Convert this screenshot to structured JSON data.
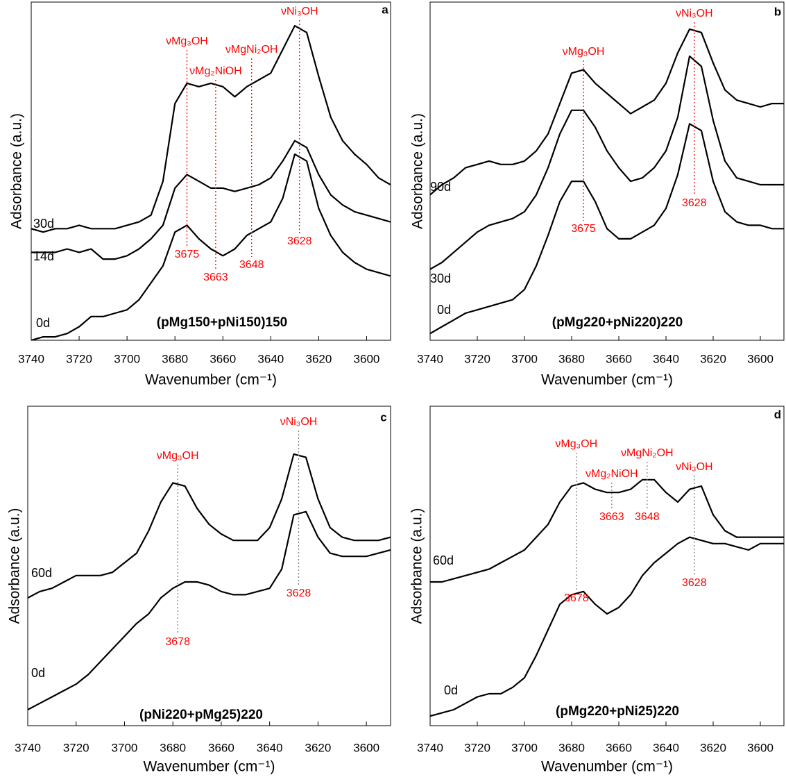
{
  "chart_data": [
    {
      "type": "line",
      "label": "a",
      "subtitle": "(pMg150+pNi150)150",
      "xlabel": "Wavenumber (cm⁻¹)",
      "ylabel": "Adsorbance (a.u.)",
      "x": [
        3740,
        3735,
        3730,
        3725,
        3720,
        3715,
        3710,
        3705,
        3700,
        3695,
        3690,
        3685,
        3680,
        3675,
        3670,
        3665,
        3660,
        3655,
        3650,
        3645,
        3640,
        3635,
        3630,
        3625,
        3620,
        3615,
        3610,
        3605,
        3600,
        3595,
        3590
      ],
      "xlim": [
        3740,
        3590
      ],
      "xticks": [
        3740,
        3720,
        3700,
        3680,
        3660,
        3640,
        3620,
        3600
      ],
      "ylim": [
        0,
        100
      ],
      "series": [
        {
          "name": "30d",
          "color": "#000000",
          "values": [
            33,
            32,
            33,
            33,
            34,
            33,
            33,
            33,
            34,
            35,
            37,
            47,
            70,
            76,
            75,
            76,
            75,
            72,
            75,
            77,
            79,
            86,
            93,
            91,
            78,
            66,
            59,
            55,
            52,
            48,
            46
          ]
        },
        {
          "name": "14d",
          "color": "#000000",
          "values": [
            26,
            26,
            26,
            27,
            26,
            27,
            24,
            24,
            25,
            27,
            30,
            34,
            45,
            49,
            47,
            45,
            45,
            44,
            45,
            46,
            48,
            53,
            59,
            57,
            49,
            43,
            40,
            38,
            37,
            36,
            35
          ]
        },
        {
          "name": "0d",
          "color": "#000000",
          "values": [
            0,
            1,
            1,
            2,
            4,
            7,
            7,
            8,
            9,
            12,
            17,
            22,
            32,
            34,
            30,
            27,
            25,
            27,
            31,
            33,
            35,
            42,
            55,
            53,
            39,
            31,
            26,
            23,
            21,
            20,
            19
          ]
        }
      ],
      "peaks": [
        {
          "name": "νMg₃OH",
          "x": 3675
        },
        {
          "name": "νMg₂NiOH",
          "x": 3663
        },
        {
          "name": "νMgNi₂OH",
          "x": 3648
        },
        {
          "name": "νNi₃OH",
          "x": 3628
        }
      ],
      "peak_color": "#ff0000",
      "peak_line_color": "#ff0000"
    },
    {
      "type": "line",
      "label": "b",
      "subtitle": "(pMg220+pNi220)220",
      "xlabel": "Wavenumber (cm⁻¹)",
      "ylabel": "Adsorbance (a.u.)",
      "x": [
        3740,
        3735,
        3730,
        3725,
        3720,
        3715,
        3710,
        3705,
        3700,
        3695,
        3690,
        3685,
        3680,
        3675,
        3670,
        3665,
        3660,
        3655,
        3650,
        3645,
        3640,
        3635,
        3630,
        3625,
        3620,
        3615,
        3610,
        3605,
        3600,
        3595,
        3590
      ],
      "xlim": [
        3740,
        3590
      ],
      "xticks": [
        3740,
        3720,
        3700,
        3680,
        3660,
        3640,
        3620,
        3600
      ],
      "ylim": [
        0,
        100
      ],
      "series": [
        {
          "name": "90d",
          "color": "#000000",
          "values": [
            43,
            46,
            48,
            51,
            52,
            53,
            52,
            52,
            53,
            56,
            61,
            70,
            79,
            80,
            76,
            73,
            70,
            67,
            69,
            71,
            76,
            85,
            92,
            91,
            82,
            74,
            71,
            70,
            69,
            70,
            70
          ]
        },
        {
          "name": "30d",
          "color": "#000000",
          "values": [
            21,
            23,
            26,
            29,
            32,
            34,
            35,
            36,
            38,
            43,
            51,
            61,
            68,
            68,
            63,
            56,
            51,
            47,
            48,
            51,
            56,
            66,
            84,
            81,
            65,
            53,
            48,
            47,
            46,
            46,
            46
          ]
        },
        {
          "name": "0d",
          "color": "#000000",
          "values": [
            2,
            4,
            6,
            8,
            9,
            10,
            11,
            12,
            15,
            22,
            31,
            41,
            47,
            47,
            41,
            33,
            30,
            30,
            32,
            34,
            39,
            49,
            64,
            62,
            47,
            38,
            35,
            34,
            34,
            33,
            33
          ]
        }
      ],
      "peaks": [
        {
          "name": "νMg₃OH",
          "x": 3675
        },
        {
          "name": "νNi₃OH",
          "x": 3628
        }
      ],
      "peak_color": "#ff0000",
      "peak_line_color": "#ff0000"
    },
    {
      "type": "line",
      "label": "c",
      "subtitle": "(pNi220+pMg25)220",
      "xlabel": "Wavenumber (cm⁻¹)",
      "ylabel": "Adsorbance (a.u.)",
      "x": [
        3740,
        3735,
        3730,
        3725,
        3720,
        3715,
        3710,
        3705,
        3700,
        3695,
        3690,
        3685,
        3680,
        3675,
        3670,
        3665,
        3660,
        3655,
        3650,
        3645,
        3640,
        3635,
        3630,
        3625,
        3620,
        3615,
        3610,
        3605,
        3600,
        3595,
        3590
      ],
      "xlim": [
        3740,
        3590
      ],
      "xticks": [
        3740,
        3720,
        3700,
        3680,
        3660,
        3640,
        3620,
        3600
      ],
      "ylim": [
        0,
        100
      ],
      "series": [
        {
          "name": "60d",
          "color": "#000000",
          "values": [
            40,
            42,
            43,
            45,
            47,
            47,
            47,
            48,
            51,
            54,
            61,
            70,
            76,
            75,
            68,
            63,
            60,
            58,
            58,
            58,
            62,
            71,
            85,
            84,
            71,
            62,
            59,
            58,
            58,
            58,
            59
          ]
        },
        {
          "name": "0d",
          "color": "#000000",
          "values": [
            5,
            7,
            9,
            11,
            13,
            16,
            20,
            24,
            28,
            32,
            35,
            40,
            43,
            45,
            45,
            44,
            42,
            41,
            41,
            42,
            43,
            49,
            66,
            67,
            59,
            54,
            53,
            53,
            53,
            54,
            55
          ]
        }
      ],
      "peaks": [
        {
          "name": "νMg₃OH",
          "x": 3678
        },
        {
          "name": "νNi₃OH",
          "x": 3628
        }
      ],
      "peak_color": "#ff0000",
      "peak_line_color": "#808080"
    },
    {
      "type": "line",
      "label": "d",
      "subtitle": "(pMg220+pNi25)220",
      "xlabel": "Wavenumber (cm⁻¹)",
      "ylabel": "Adsorbance (a.u.)",
      "x": [
        3740,
        3735,
        3730,
        3725,
        3720,
        3715,
        3710,
        3705,
        3700,
        3695,
        3690,
        3685,
        3680,
        3675,
        3670,
        3665,
        3660,
        3655,
        3650,
        3645,
        3640,
        3635,
        3630,
        3625,
        3620,
        3615,
        3610,
        3605,
        3600,
        3595,
        3590
      ],
      "xlim": [
        3740,
        3590
      ],
      "xticks": [
        3740,
        3720,
        3700,
        3680,
        3660,
        3640,
        3620,
        3600
      ],
      "ylim": [
        0,
        100
      ],
      "series": [
        {
          "name": "60d",
          "color": "#000000",
          "values": [
            45,
            45,
            46,
            47,
            48,
            49,
            51,
            53,
            55,
            59,
            63,
            70,
            75,
            76,
            74,
            73,
            73,
            74,
            77,
            77,
            73,
            70,
            74,
            75,
            66,
            61,
            59,
            59,
            59,
            59,
            59
          ]
        },
        {
          "name": "0d",
          "color": "#000000",
          "values": [
            3,
            4,
            5,
            7,
            9,
            10,
            10,
            12,
            15,
            22,
            30,
            38,
            41,
            42,
            38,
            35,
            37,
            41,
            47,
            51,
            54,
            57,
            59,
            58,
            57,
            57,
            56,
            55,
            57,
            57,
            57
          ]
        }
      ],
      "peaks": [
        {
          "name": "νMg₃OH",
          "x": 3678
        },
        {
          "name": "νMg₂NiOH",
          "x": 3663
        },
        {
          "name": "νMgNi₂OH",
          "x": 3648
        },
        {
          "name": "νNi₃OH",
          "x": 3628
        }
      ],
      "peak_color": "#ff0000",
      "peak_line_color": "#808080"
    }
  ]
}
